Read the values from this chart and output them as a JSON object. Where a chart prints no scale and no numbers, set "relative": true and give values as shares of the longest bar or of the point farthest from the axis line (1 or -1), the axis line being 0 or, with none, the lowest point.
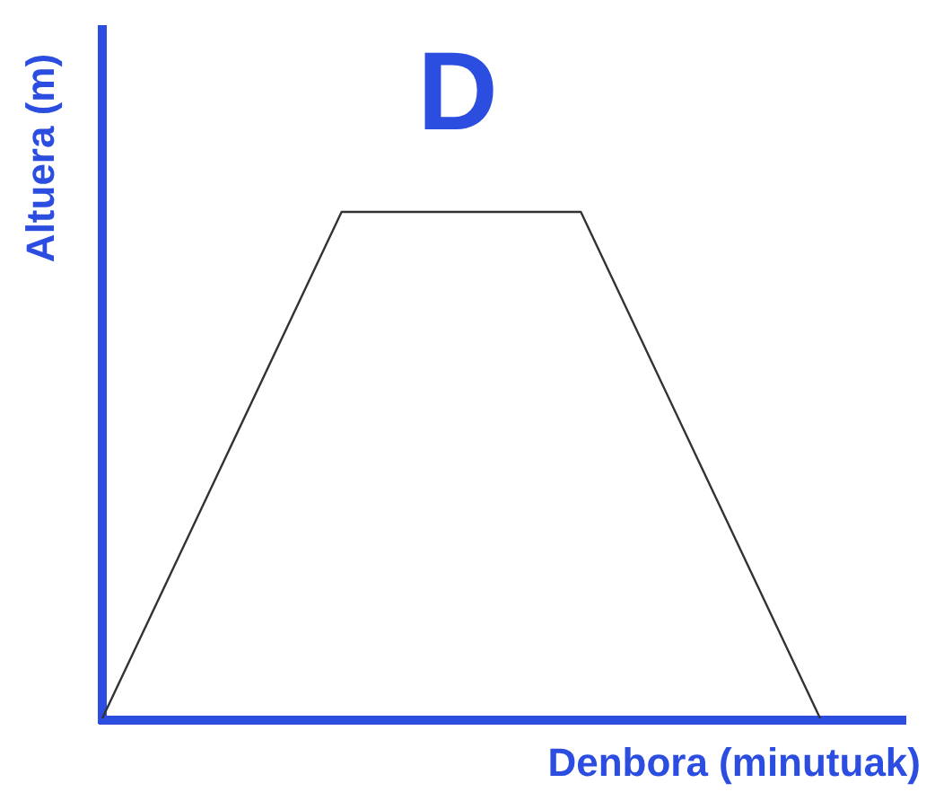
{
  "chart_data": {
    "type": "line",
    "title": "D",
    "xlabel": "Denbora (minutuak)",
    "ylabel": "Altuera (m)",
    "relative": true,
    "categories": [
      null,
      null,
      null,
      null
    ],
    "values": [
      0,
      1,
      1,
      0
    ],
    "color": "#333333"
  }
}
